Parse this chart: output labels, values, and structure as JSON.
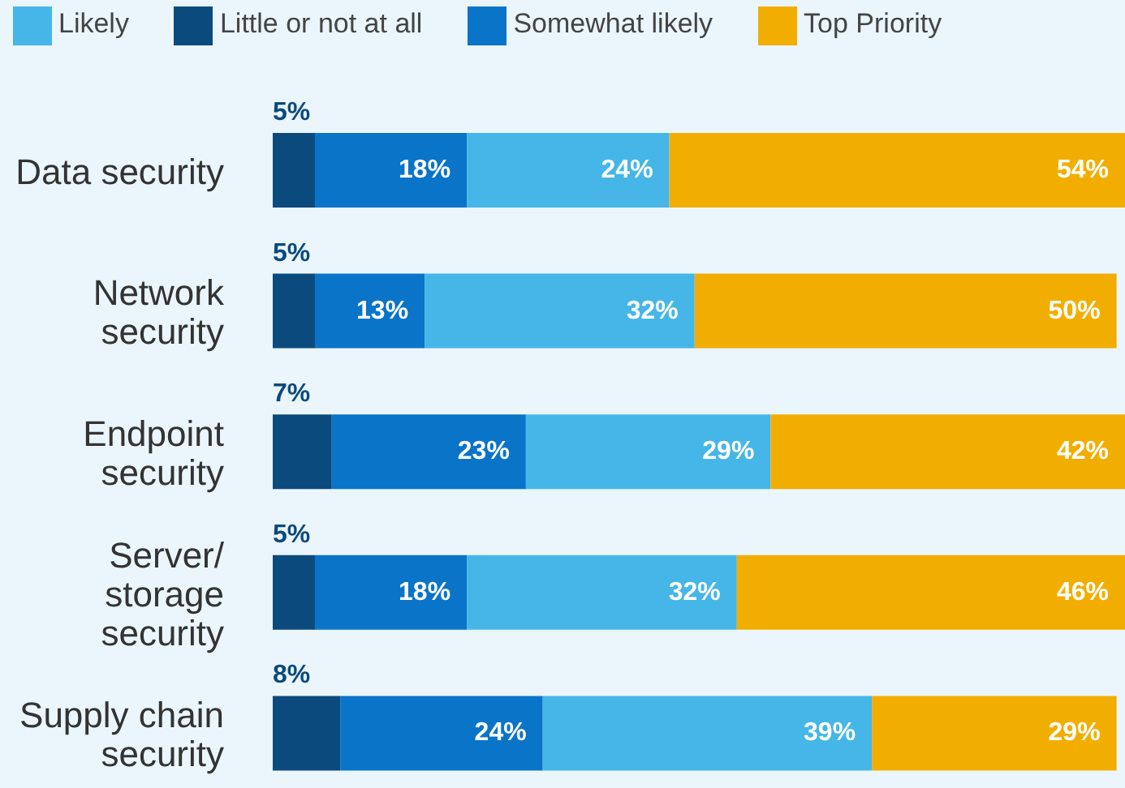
{
  "chart_data": {
    "type": "bar",
    "orientation": "horizontal",
    "stacked": true,
    "categories": [
      "Data security",
      "Network security",
      "Endpoint security",
      "Server/storage security",
      "Supply chain security"
    ],
    "series": [
      {
        "name": "Little or not at all",
        "color": "#0b4a7d",
        "values": [
          5,
          5,
          7,
          5,
          8
        ],
        "value_labels": [
          "5%",
          "5%",
          "7%",
          "5%",
          "8%"
        ]
      },
      {
        "name": "Somewhat likely",
        "color": "#0a74c9",
        "values": [
          18,
          13,
          23,
          18,
          24
        ],
        "value_labels": [
          "18%",
          "13%",
          "23%",
          "18%",
          "24%"
        ]
      },
      {
        "name": "Likely",
        "color": "#45b6e7",
        "values": [
          24,
          32,
          29,
          32,
          39
        ],
        "value_labels": [
          "24%",
          "32%",
          "29%",
          "32%",
          "39%"
        ]
      },
      {
        "name": "Top Priority",
        "color": "#f2ae00",
        "values": [
          54,
          50,
          42,
          46,
          29
        ],
        "value_labels": [
          "54%",
          "50%",
          "42%",
          "46%",
          "29%"
        ]
      }
    ],
    "xlim": [
      0,
      101
    ],
    "tick_labels": "y",
    "legend": "top left"
  }
}
